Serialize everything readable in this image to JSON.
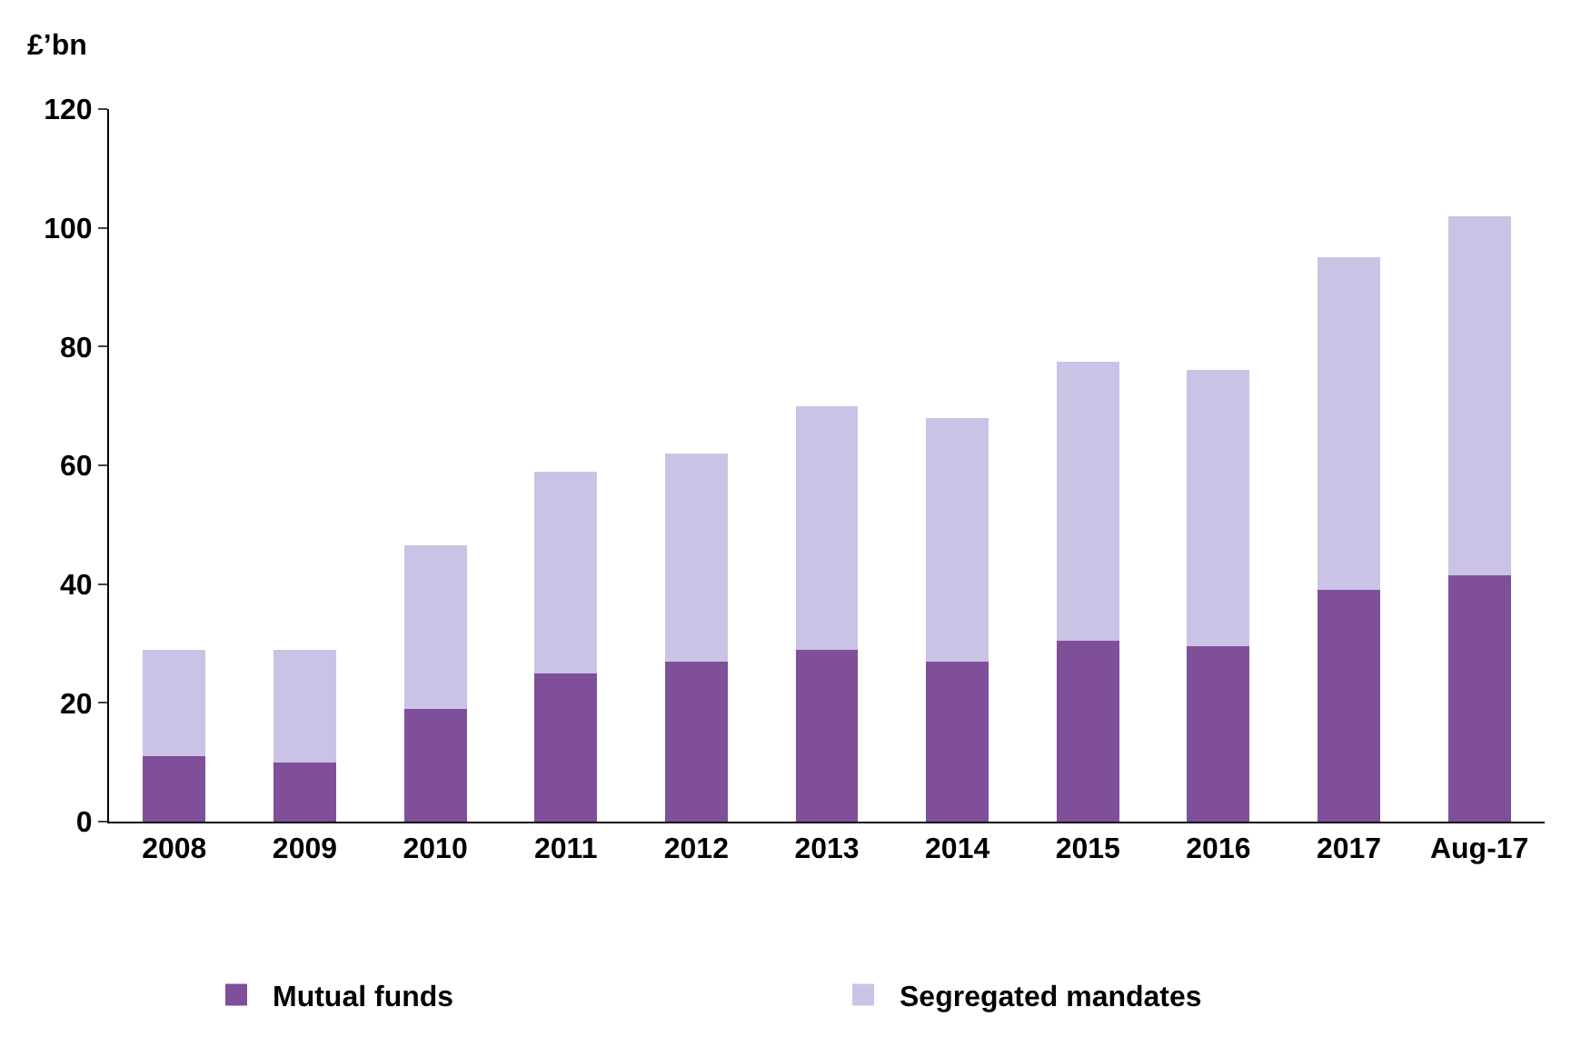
{
  "chart_data": {
    "type": "bar",
    "stacked": true,
    "ylabel": "£’bn",
    "categories": [
      "2008",
      "2009",
      "2010",
      "2011",
      "2012",
      "2013",
      "2014",
      "2015",
      "2016",
      "2017",
      "Aug-17"
    ],
    "series": [
      {
        "name": "Mutual funds",
        "color": "#7f4f9a",
        "values": [
          11,
          10,
          19,
          25,
          27,
          29,
          27,
          30.5,
          29.5,
          39,
          41.5
        ]
      },
      {
        "name": "Segregated mandates",
        "color": "#cbc3e6",
        "values": [
          18,
          19,
          27.5,
          34,
          35,
          41,
          41,
          47,
          46.5,
          56,
          60.5
        ]
      }
    ],
    "ylim": [
      0,
      120
    ],
    "yticks": [
      0,
      20,
      40,
      60,
      80,
      100,
      120
    ],
    "legend": "bottom"
  }
}
